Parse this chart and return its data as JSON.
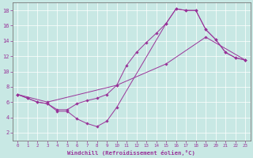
{
  "xlabel": "Windchill (Refroidissement éolien,°C)",
  "background_color": "#c8e8e4",
  "line_color": "#993399",
  "xlim": [
    -0.5,
    23.5
  ],
  "ylim": [
    1.0,
    19.0
  ],
  "yticks": [
    2,
    4,
    6,
    8,
    10,
    12,
    14,
    16,
    18
  ],
  "xticks": [
    0,
    1,
    2,
    3,
    4,
    5,
    6,
    7,
    8,
    9,
    10,
    11,
    12,
    13,
    14,
    15,
    16,
    17,
    18,
    19,
    20,
    21,
    22,
    23
  ],
  "series1_x": [
    0,
    1,
    2,
    3,
    4,
    5,
    6,
    7,
    8,
    9,
    10,
    11,
    12,
    13,
    14,
    15,
    16,
    17,
    18,
    19,
    20,
    21,
    22,
    23
  ],
  "series1_y": [
    7.0,
    6.5,
    6.0,
    5.8,
    5.0,
    5.0,
    5.8,
    6.2,
    6.5,
    7.0,
    8.2,
    10.8,
    12.5,
    13.8,
    15.0,
    16.3,
    18.2,
    18.0,
    18.0,
    15.5,
    14.2,
    12.5,
    11.8,
    11.5
  ],
  "series2_x": [
    0,
    1,
    2,
    3,
    4,
    5,
    6,
    7,
    8,
    9,
    10,
    15,
    16,
    17,
    18,
    19,
    20,
    21,
    22,
    23
  ],
  "series2_y": [
    7.0,
    6.5,
    6.0,
    5.8,
    4.8,
    4.8,
    3.8,
    3.2,
    2.8,
    3.5,
    5.3,
    16.3,
    18.2,
    18.0,
    18.0,
    15.5,
    14.2,
    12.5,
    11.8,
    11.5
  ],
  "series3_x": [
    0,
    3,
    10,
    15,
    19,
    23
  ],
  "series3_y": [
    7.0,
    6.0,
    8.2,
    11.0,
    14.5,
    11.5
  ]
}
